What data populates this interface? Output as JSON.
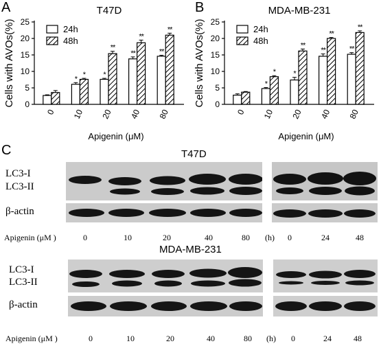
{
  "chart_data": [
    {
      "panel": "A",
      "type": "bar",
      "title": "T47D",
      "ylabel": "Cells with AVOs(%)",
      "xlabel": "Apigenin (μM)",
      "ylim": [
        0,
        25
      ],
      "yticks": [
        0,
        5,
        10,
        15,
        20,
        25
      ],
      "categories": [
        "0",
        "10",
        "20",
        "40",
        "80"
      ],
      "legend_position": "top-left",
      "series": [
        {
          "name": "24h",
          "pattern": "white",
          "values": [
            2.7,
            6.1,
            7.6,
            13.8,
            14.6
          ],
          "errors": [
            0.2,
            0.5,
            0.3,
            0.6,
            0.3
          ],
          "marks": [
            "",
            "*",
            "*",
            "**",
            "**"
          ]
        },
        {
          "name": "48h",
          "pattern": "hatch",
          "values": [
            3.6,
            7.6,
            15.4,
            18.7,
            21.0
          ],
          "errors": [
            0.6,
            0.3,
            0.7,
            0.8,
            0.6
          ],
          "marks": [
            "",
            "*",
            "**",
            "**",
            "**"
          ]
        }
      ]
    },
    {
      "panel": "B",
      "type": "bar",
      "title": "MDA-MB-231",
      "ylabel": "Cells with AVOs(%)",
      "xlabel": "Apigenin (μM)",
      "ylim": [
        0,
        25
      ],
      "yticks": [
        0,
        5,
        10,
        15,
        20,
        25
      ],
      "categories": [
        "0",
        "10",
        "20",
        "40",
        "80"
      ],
      "legend_position": "top-left",
      "series": [
        {
          "name": "24h",
          "pattern": "white",
          "values": [
            2.8,
            4.8,
            7.4,
            14.6,
            15.2
          ],
          "errors": [
            0.4,
            0.3,
            0.8,
            0.7,
            0.5
          ],
          "marks": [
            "",
            "*",
            "*",
            "**",
            "**"
          ]
        },
        {
          "name": "48h",
          "pattern": "hatch",
          "values": [
            3.7,
            8.4,
            16.2,
            20.0,
            21.8
          ],
          "errors": [
            0.2,
            0.3,
            0.6,
            0.3,
            0.5
          ],
          "marks": [
            "",
            "*",
            "**",
            "**",
            "**"
          ]
        }
      ]
    }
  ],
  "labels": {
    "panel_a": "A",
    "panel_b": "B",
    "panel_c": "C"
  },
  "blots": {
    "t47d_title": "T47D",
    "mda_title": "MDA-MB-231",
    "lc3_i": "LC3-I",
    "lc3_ii": "LC3-II",
    "beta_actin": "β-actin",
    "dose_prefix": "Apigenin (μM )",
    "doses": [
      "0",
      "10",
      "20",
      "40",
      "80"
    ],
    "hours_label": "(h)",
    "times": [
      "0",
      "24",
      "48"
    ]
  },
  "colors": {
    "bar_fill": "#ffffff",
    "stroke": "#000000",
    "blot_background": "#cfcfcf",
    "band": "#151515"
  }
}
